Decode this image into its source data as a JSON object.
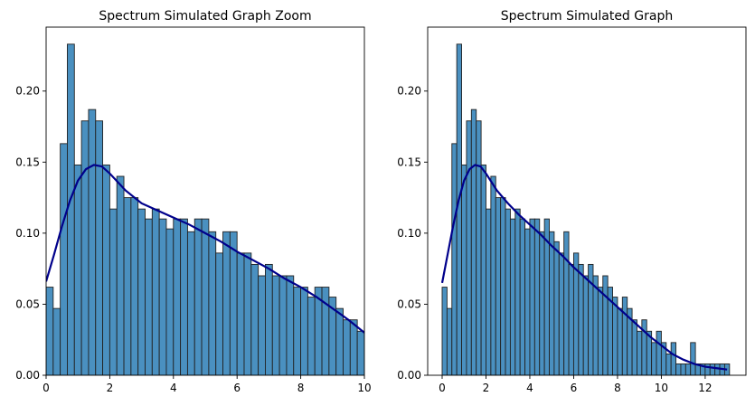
{
  "colors": {
    "bar_fill": "#4a90c0",
    "bar_edge": "#222222",
    "kde_line": "#00008b",
    "background": "#ffffff"
  },
  "chart_data": [
    {
      "type": "bar",
      "title": "Spectrum Simulated Graph Zoom",
      "xlabel": "",
      "ylabel": "",
      "xlim": [
        0,
        10
      ],
      "ylim": [
        0,
        0.245
      ],
      "xticks": [
        0,
        2,
        4,
        6,
        8,
        10
      ],
      "xtick_labels": [
        "0",
        "2",
        "4",
        "6",
        "8",
        "10"
      ],
      "yticks": [
        0.0,
        0.05,
        0.1,
        0.15,
        0.2
      ],
      "ytick_labels": [
        "0.00",
        "0.05",
        "0.10",
        "0.15",
        "0.20"
      ],
      "bin_width": 0.2222,
      "bin_start": 0,
      "values": [
        0.062,
        0.047,
        0.163,
        0.233,
        0.148,
        0.179,
        0.187,
        0.179,
        0.148,
        0.117,
        0.14,
        0.125,
        0.125,
        0.117,
        0.11,
        0.117,
        0.11,
        0.103,
        0.11,
        0.11,
        0.101,
        0.11,
        0.11,
        0.101,
        0.086,
        0.101,
        0.101,
        0.086,
        0.086,
        0.078,
        0.07,
        0.078,
        0.07,
        0.07,
        0.07,
        0.062,
        0.062,
        0.055,
        0.062,
        0.062,
        0.055,
        0.047,
        0.039,
        0.039,
        0.031,
        0.035,
        0.039
      ],
      "kde": {
        "x": [
          0,
          0.25,
          0.5,
          0.75,
          1.0,
          1.25,
          1.5,
          1.75,
          2.0,
          2.5,
          3.0,
          3.5,
          4.0,
          4.5,
          5.0,
          5.5,
          6.0,
          6.5,
          7.0,
          7.5,
          8.0,
          8.5,
          9.0,
          9.5,
          10.0
        ],
        "y": [
          0.066,
          0.085,
          0.105,
          0.123,
          0.137,
          0.145,
          0.148,
          0.147,
          0.142,
          0.13,
          0.121,
          0.116,
          0.111,
          0.106,
          0.1,
          0.094,
          0.087,
          0.081,
          0.075,
          0.068,
          0.062,
          0.055,
          0.047,
          0.039,
          0.03
        ]
      }
    },
    {
      "type": "bar",
      "title": "Spectrum Simulated Graph",
      "xlabel": "",
      "ylabel": "",
      "xlim": [
        -0.66,
        13.86
      ],
      "ylim": [
        0,
        0.245
      ],
      "xticks": [
        0,
        2,
        4,
        6,
        8,
        10,
        12
      ],
      "xtick_labels": [
        "0",
        "2",
        "4",
        "6",
        "8",
        "10",
        "12"
      ],
      "yticks": [
        0.0,
        0.05,
        0.1,
        0.15,
        0.2
      ],
      "ytick_labels": [
        "0.00",
        "0.05",
        "0.10",
        "0.15",
        "0.20"
      ],
      "bin_width": 0.2222,
      "bin_start": 0,
      "values": [
        0.062,
        0.047,
        0.163,
        0.233,
        0.148,
        0.179,
        0.187,
        0.179,
        0.148,
        0.117,
        0.14,
        0.125,
        0.125,
        0.117,
        0.11,
        0.117,
        0.11,
        0.103,
        0.11,
        0.11,
        0.101,
        0.11,
        0.101,
        0.094,
        0.086,
        0.101,
        0.078,
        0.086,
        0.078,
        0.07,
        0.078,
        0.07,
        0.062,
        0.07,
        0.062,
        0.055,
        0.047,
        0.055,
        0.047,
        0.039,
        0.031,
        0.039,
        0.031,
        0.023,
        0.031,
        0.023,
        0.015,
        0.023,
        0.008,
        0.008,
        0.008,
        0.023,
        0.008,
        0.008,
        0.008,
        0.008,
        0.008,
        0.008,
        0.008
      ],
      "kde": {
        "x": [
          0,
          0.25,
          0.5,
          0.75,
          1.0,
          1.25,
          1.5,
          1.75,
          2.0,
          2.5,
          3.0,
          3.5,
          4.0,
          4.5,
          5.0,
          5.5,
          6.0,
          6.5,
          7.0,
          7.5,
          8.0,
          8.5,
          9.0,
          9.5,
          10.0,
          10.5,
          11.0,
          11.5,
          12.0,
          12.5,
          13.0
        ],
        "y": [
          0.065,
          0.085,
          0.105,
          0.123,
          0.137,
          0.145,
          0.148,
          0.147,
          0.142,
          0.13,
          0.121,
          0.113,
          0.106,
          0.099,
          0.091,
          0.084,
          0.076,
          0.069,
          0.062,
          0.055,
          0.048,
          0.041,
          0.034,
          0.027,
          0.021,
          0.015,
          0.011,
          0.008,
          0.006,
          0.005,
          0.004
        ]
      }
    }
  ]
}
